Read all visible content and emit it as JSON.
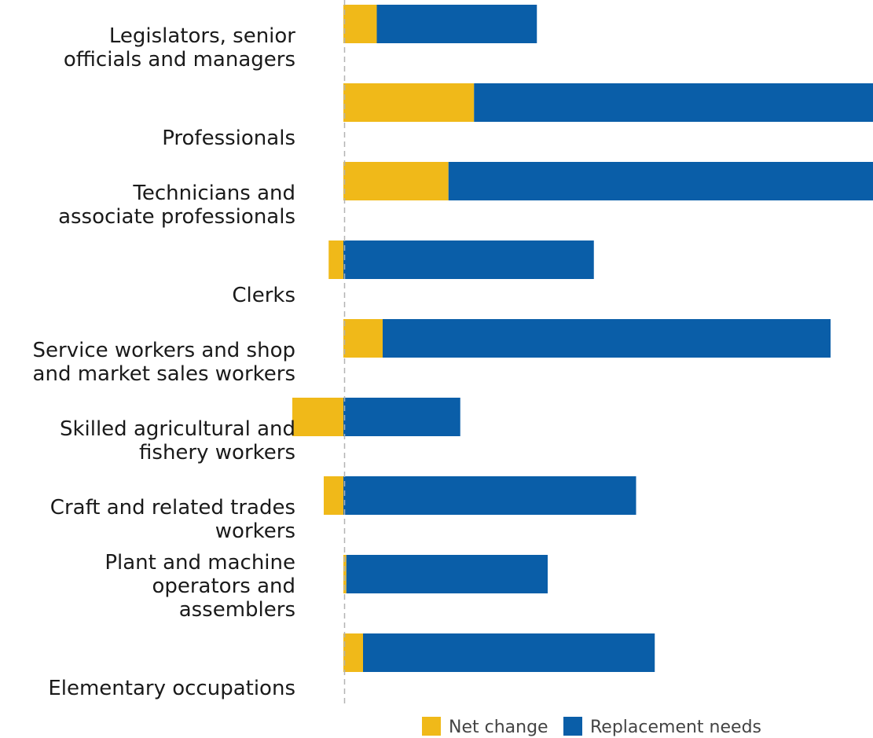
{
  "chart_data": {
    "type": "bar",
    "orientation": "horizontal",
    "stacked": true,
    "categories": [
      [
        "Legislators, senior",
        "officials and managers"
      ],
      [
        "Professionals"
      ],
      [
        "Technicians and",
        "associate professionals"
      ],
      [
        "Clerks"
      ],
      [
        "Service workers and shop",
        "and market sales workers"
      ],
      [
        "Skilled agricultural and",
        "fishery workers"
      ],
      [
        "Craft and related trades",
        "workers"
      ],
      [
        "Plant and machine",
        "operators and",
        "assemblers"
      ],
      [
        "Elementary occupations"
      ]
    ],
    "series": [
      {
        "name": "Net change",
        "color": "#f0b919",
        "values": [
          0.34,
          1.33,
          1.07,
          -0.15,
          0.4,
          -0.52,
          -0.2,
          0.03,
          0.2
        ]
      },
      {
        "name": "Replacement needs",
        "color": "#0a5ea8",
        "values": [
          1.63,
          5.37,
          4.69,
          2.55,
          4.56,
          1.19,
          2.98,
          2.05,
          2.97
        ]
      }
    ],
    "zero_line": {
      "style": "dashed",
      "color": "#b3b3b3"
    },
    "legend": {
      "position": "bottom-right"
    }
  }
}
